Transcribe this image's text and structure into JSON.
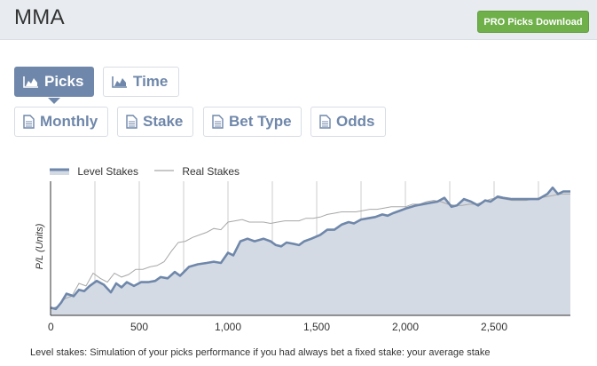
{
  "header": {
    "title": "MMA",
    "pro_button": "PRO Picks Download"
  },
  "tabs": [
    {
      "label": "Picks",
      "icon": "area-chart-icon",
      "active": true
    },
    {
      "label": "Time",
      "icon": "area-chart-icon",
      "active": false
    },
    {
      "label": "Monthly",
      "icon": "document-icon",
      "active": false
    },
    {
      "label": "Stake",
      "icon": "document-icon",
      "active": false
    },
    {
      "label": "Bet Type",
      "icon": "document-icon",
      "active": false
    },
    {
      "label": "Odds",
      "icon": "document-icon",
      "active": false
    }
  ],
  "chart_data": {
    "type": "area",
    "ylabel": "P/L (Units)",
    "xlabel": "",
    "x_ticks": [
      "0",
      "500",
      "1,000",
      "1,500",
      "2,000",
      "2,500"
    ],
    "xlim": [
      0,
      2930
    ],
    "ylim": [
      -5,
      100
    ],
    "grid": "vertical",
    "legend_placement": "top-left",
    "colors": {
      "level": "#6f87aa",
      "level_fill": "#d4dae4",
      "real": "#a8a8a8"
    },
    "series": [
      {
        "name": "Level Stakes",
        "style": "area",
        "x": [
          0,
          30,
          60,
          90,
          130,
          160,
          190,
          220,
          260,
          300,
          340,
          370,
          400,
          430,
          470,
          510,
          550,
          590,
          620,
          660,
          700,
          730,
          780,
          830,
          880,
          920,
          960,
          1000,
          1030,
          1070,
          1110,
          1150,
          1200,
          1240,
          1270,
          1300,
          1330,
          1370,
          1400,
          1430,
          1470,
          1520,
          1560,
          1600,
          1640,
          1680,
          1710,
          1750,
          1790,
          1830,
          1870,
          1900,
          1930,
          1970,
          2010,
          2060,
          2100,
          2140,
          2180,
          2220,
          2260,
          2290,
          2330,
          2370,
          2410,
          2450,
          2480,
          2520,
          2550,
          2600,
          2650,
          2700,
          2750,
          2800,
          2830,
          2860,
          2890,
          2930
        ],
        "values": [
          1,
          0,
          5,
          12,
          10,
          15,
          14,
          18,
          22,
          19,
          13,
          20,
          17,
          21,
          18,
          21,
          21,
          22,
          25,
          24,
          29,
          26,
          33,
          35,
          36,
          37,
          36,
          44,
          42,
          53,
          55,
          53,
          55,
          53,
          50,
          49,
          52,
          51,
          50,
          53,
          55,
          58,
          62,
          62,
          66,
          68,
          67,
          70,
          71,
          72,
          74,
          73,
          75,
          77,
          79,
          81,
          82,
          83,
          84,
          87,
          80,
          81,
          86,
          84,
          81,
          85,
          84,
          88,
          87,
          86,
          86,
          86,
          86,
          90,
          95,
          90,
          92,
          92
        ]
      },
      {
        "name": "Real Stakes",
        "style": "line",
        "x": [
          0,
          40,
          80,
          120,
          160,
          200,
          240,
          280,
          320,
          360,
          400,
          440,
          480,
          520,
          560,
          600,
          640,
          680,
          720,
          760,
          800,
          840,
          880,
          920,
          960,
          1000,
          1040,
          1080,
          1120,
          1160,
          1200,
          1240,
          1280,
          1320,
          1360,
          1400,
          1440,
          1480,
          1520,
          1560,
          1600,
          1640,
          1680,
          1720,
          1760,
          1800,
          1840,
          1880,
          1920,
          1960,
          2000,
          2040,
          2080,
          2120,
          2160,
          2200,
          2240,
          2280,
          2320,
          2360,
          2400,
          2440,
          2480,
          2520,
          2560,
          2600,
          2640,
          2680,
          2720,
          2760,
          2800,
          2840,
          2880,
          2930
        ],
        "values": [
          0,
          2,
          8,
          10,
          20,
          18,
          28,
          24,
          21,
          28,
          25,
          27,
          31,
          31,
          33,
          34,
          37,
          45,
          52,
          53,
          56,
          58,
          60,
          63,
          62,
          68,
          69,
          70,
          68,
          68,
          68,
          67,
          68,
          69,
          69,
          69,
          71,
          71,
          72,
          74,
          75,
          76,
          76,
          76,
          77,
          78,
          78,
          79,
          80,
          80,
          80,
          82,
          82,
          84,
          85,
          84,
          82,
          81,
          81,
          82,
          82,
          84,
          86,
          87,
          86,
          85,
          85,
          85,
          86,
          87,
          88,
          89,
          90,
          90
        ]
      }
    ]
  },
  "footnote": "Level stakes: Simulation of your picks performance if you had always bet a fixed stake: your average stake"
}
